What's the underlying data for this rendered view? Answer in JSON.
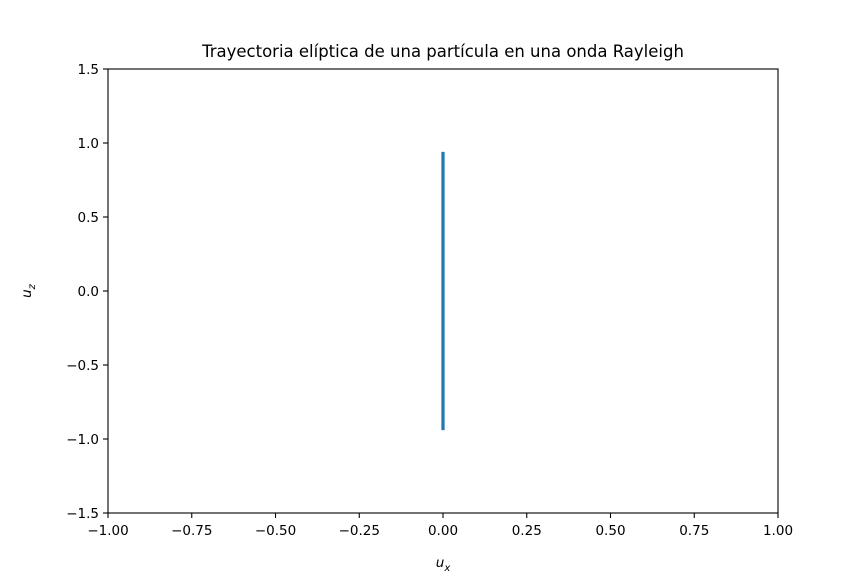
{
  "chart_data": {
    "type": "line",
    "title": "Trayectoria elíptica de una partícula en una onda Rayleigh",
    "xlabel": {
      "base": "u",
      "sub": "x"
    },
    "ylabel": {
      "base": "u",
      "sub": "z"
    },
    "xlim": [
      -1.0,
      1.0
    ],
    "ylim": [
      -1.5,
      1.5
    ],
    "xticks": [
      -1.0,
      -0.75,
      -0.5,
      -0.25,
      0.0,
      0.25,
      0.5,
      0.75,
      1.0
    ],
    "xtick_labels": [
      "−1.00",
      "−0.75",
      "−0.50",
      "−0.25",
      "0.00",
      "0.25",
      "0.50",
      "0.75",
      "1.00"
    ],
    "yticks": [
      -1.5,
      -1.0,
      -0.5,
      0.0,
      0.5,
      1.0,
      1.5
    ],
    "ytick_labels": [
      "−1.5",
      "−1.0",
      "−0.5",
      "0.0",
      "0.5",
      "1.0",
      "1.5"
    ],
    "grid": false,
    "series": [
      {
        "color": "#1f77b4",
        "x": [
          0.0,
          0.0
        ],
        "y": [
          -0.94,
          0.94
        ]
      }
    ]
  }
}
